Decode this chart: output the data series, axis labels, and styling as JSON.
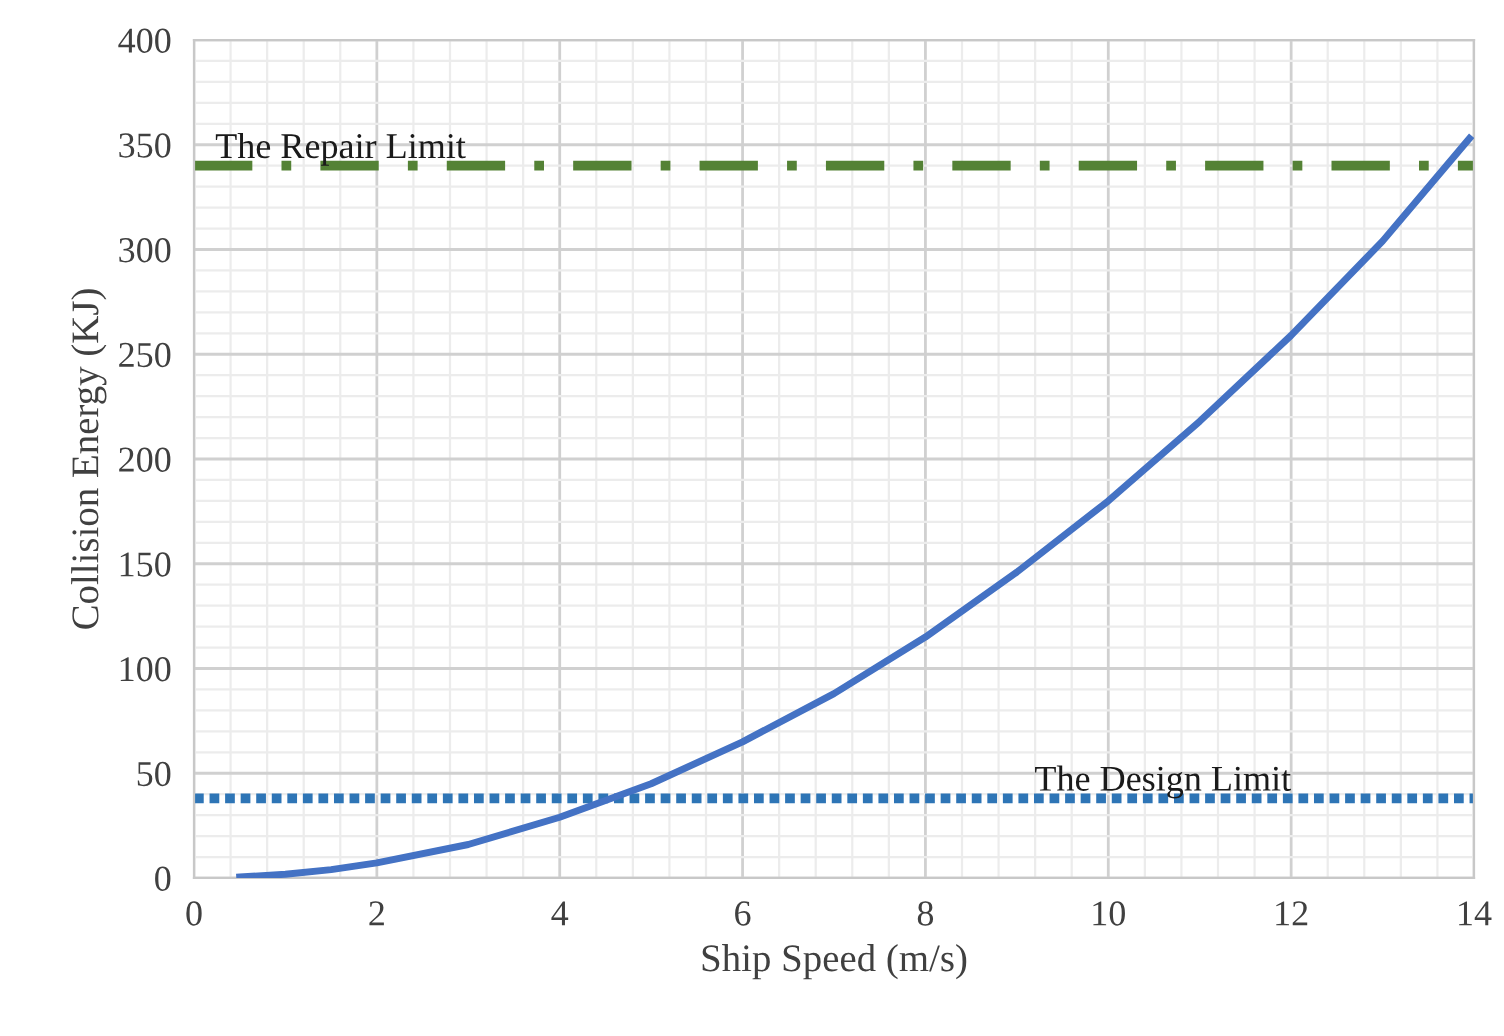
{
  "chart_data": {
    "type": "line",
    "xlabel": "Ship Speed (m/s)",
    "ylabel": "Collision Energy (KJ)",
    "x": [
      0.5,
      1,
      1.5,
      2,
      3,
      4,
      5,
      6,
      7,
      8,
      9,
      10,
      11,
      12,
      13,
      13.95
    ],
    "series": [
      {
        "color": "#4472c4",
        "values": [
          0.45,
          1.8,
          4,
          7.2,
          16,
          29,
          45,
          65,
          88,
          115,
          146,
          180,
          218,
          259,
          304,
          353
        ]
      }
    ],
    "ref_lines": [
      {
        "axis": "y",
        "value": 340,
        "label": "The Repair Limit",
        "color": "#548235",
        "line_style": "dashdot"
      },
      {
        "axis": "y",
        "value": 38,
        "label": "The Design Limit",
        "color": "#2e75b6",
        "line_style": "dotted"
      }
    ],
    "xlim": [
      0,
      14
    ],
    "xticks": [
      0,
      2,
      4,
      6,
      8,
      10,
      12,
      14
    ],
    "ylim": [
      0,
      400
    ],
    "yticks": [
      0,
      50,
      100,
      150,
      200,
      250,
      300,
      350,
      400
    ],
    "grid": true,
    "marker": "none",
    "line_style": "solid",
    "legend": false
  }
}
